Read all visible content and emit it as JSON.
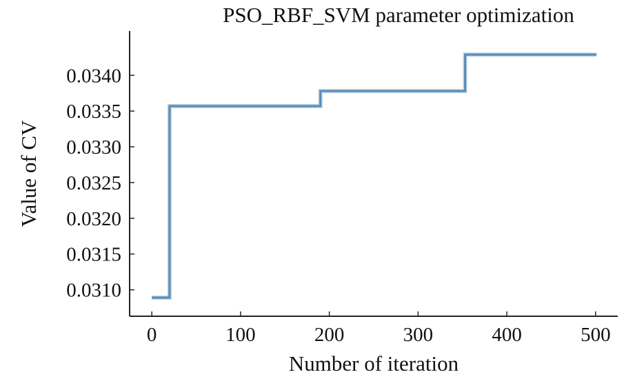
{
  "chart_data": {
    "type": "line",
    "title": "PSO_RBF_SVM parameter optimization",
    "xlabel": "Number of iteration",
    "ylabel": "Value of CV",
    "xlim": [
      -25,
      525
    ],
    "ylim": [
      0.03063,
      0.03462
    ],
    "xticks": [
      0,
      100,
      200,
      300,
      400,
      500
    ],
    "xtick_labels": [
      "0",
      "100",
      "200",
      "300",
      "400",
      "500"
    ],
    "yticks": [
      0.031,
      0.0315,
      0.032,
      0.0325,
      0.033,
      0.0335,
      0.034
    ],
    "ytick_labels": [
      "0.0310",
      "0.0315",
      "0.0320",
      "0.0325",
      "0.0330",
      "0.0335",
      "0.0340"
    ],
    "grid": false,
    "series": [
      {
        "color": "#5b8bb5",
        "x": [
          0,
          20,
          20,
          190,
          190,
          353,
          353,
          501
        ],
        "y": [
          0.03089,
          0.03089,
          0.03357,
          0.03357,
          0.03378,
          0.03378,
          0.03429,
          0.03429
        ]
      }
    ]
  }
}
